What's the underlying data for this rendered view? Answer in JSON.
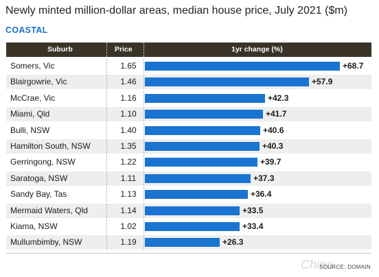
{
  "title": "Newly minted million-dollar areas, median house price, July 2021 ($m)",
  "section": "COASTAL",
  "source": "SOURCE: DOMAIN",
  "watermark": "China",
  "colors": {
    "bar": "#1a74d2",
    "header_bg": "#3a3328",
    "section": "#1a73c8"
  },
  "chart_data": {
    "type": "table",
    "columns": [
      "Suburb",
      "Price",
      "1yr change (%)"
    ],
    "rows": [
      {
        "suburb": "Somers, Vic",
        "price": "1.65",
        "change": 68.7,
        "label": "+68.7"
      },
      {
        "suburb": "Blairgowrie, Vic",
        "price": "1.46",
        "change": 57.9,
        "label": "+57.9"
      },
      {
        "suburb": "McCrae, Vic",
        "price": "1.16",
        "change": 42.3,
        "label": "+42.3"
      },
      {
        "suburb": "Miami, Qld",
        "price": "1.10",
        "change": 41.7,
        "label": "+41.7"
      },
      {
        "suburb": "Bulli, NSW",
        "price": "1.40",
        "change": 40.6,
        "label": "+40.6"
      },
      {
        "suburb": "Hamilton South, NSW",
        "price": "1.35",
        "change": 40.3,
        "label": "+40.3"
      },
      {
        "suburb": "Gerringong, NSW",
        "price": "1.22",
        "change": 39.7,
        "label": "+39.7"
      },
      {
        "suburb": "Saratoga, NSW",
        "price": "1.11",
        "change": 37.3,
        "label": "+37.3"
      },
      {
        "suburb": "Sandy Bay, Tas",
        "price": "1.13",
        "change": 36.4,
        "label": "+36.4"
      },
      {
        "suburb": "Mermaid Waters, Qld",
        "price": "1.14",
        "change": 33.5,
        "label": "+33.5"
      },
      {
        "suburb": "Kiama, NSW",
        "price": "1.02",
        "change": 33.4,
        "label": "+33.4"
      },
      {
        "suburb": "Mullumbimby, NSW",
        "price": "1.19",
        "change": 26.3,
        "label": "+26.3"
      }
    ],
    "xlim": [
      0,
      68.7
    ]
  }
}
